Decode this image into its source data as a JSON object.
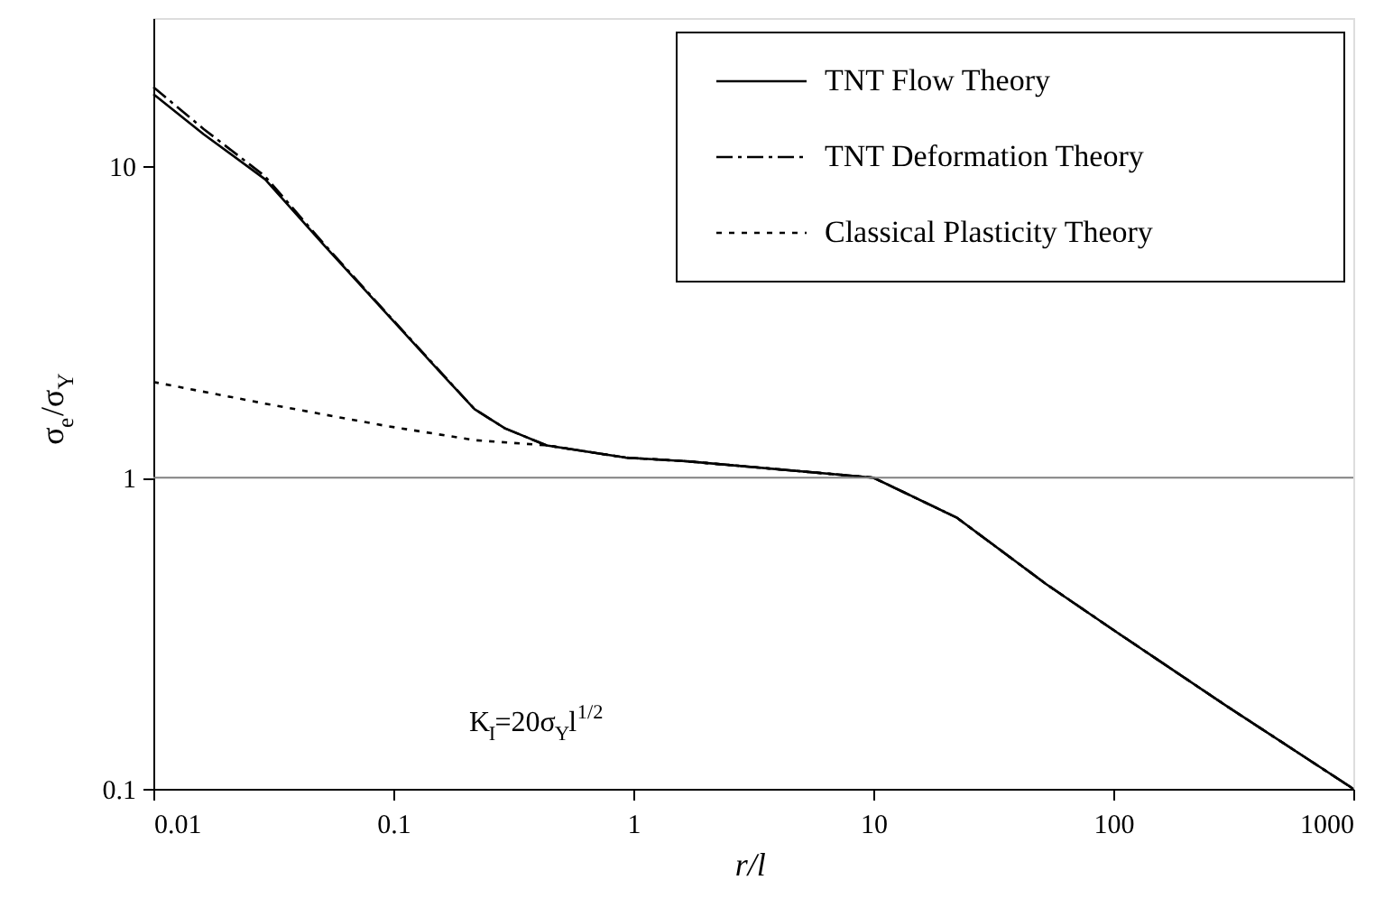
{
  "chart_data": {
    "type": "line",
    "xlabel": "r/l",
    "ylabel": "σ$_{e}$/σ$_{Y}$",
    "annotations": [
      "K$_{I}$=20σ$_{Y}$l$^{1/2}$"
    ],
    "log": "xy",
    "xlim": [
      0.01,
      1000
    ],
    "ylim": [
      0.1,
      30
    ],
    "xticks": [
      0.01,
      0.1,
      1,
      10,
      100,
      1000
    ],
    "yticks": [
      0.1,
      1,
      10
    ],
    "grid": false,
    "legend": "top right",
    "marker": "none",
    "ref_lines": [
      {
        "axis": "y",
        "value": 1,
        "color": "#808080",
        "line_style": "solid"
      }
    ],
    "series": [
      {
        "name": "TNT Flow Theory",
        "color": "#000000",
        "line_style": "solid",
        "x": [
          0.01,
          0.0162,
          0.0292,
          0.0518,
          0.0916,
          0.165,
          0.218,
          0.292,
          0.435,
          0.93,
          1.65,
          10,
          22.2,
          52.7,
          105,
          295,
          1000
        ],
        "values": [
          17.1,
          12.7,
          9.1,
          5.55,
          3.43,
          2.09,
          1.66,
          1.44,
          1.27,
          1.16,
          1.13,
          1.0,
          0.745,
          0.454,
          0.316,
          0.185,
          0.1
        ]
      },
      {
        "name": "TNT Deformation Theory",
        "color": "#000000",
        "line_style": "dashdot",
        "x": [
          0.01,
          0.0162,
          0.0292,
          0.0518,
          0.0916,
          0.165,
          0.218,
          0.292,
          0.435,
          0.93,
          1.65,
          10,
          22.2,
          52.7,
          105,
          295,
          1000
        ],
        "values": [
          18.0,
          13.2,
          9.3,
          5.6,
          3.45,
          2.1,
          1.66,
          1.44,
          1.27,
          1.16,
          1.13,
          1.0,
          0.745,
          0.454,
          0.316,
          0.185,
          0.1
        ]
      },
      {
        "name": "Classical Plasticity Theory",
        "color": "#000000",
        "line_style": "dotted",
        "x": [
          0.01,
          0.0292,
          0.0916,
          0.218,
          0.435,
          0.93,
          1.65,
          10,
          22.2,
          52.7,
          105,
          295,
          1000
        ],
        "values": [
          2.03,
          1.73,
          1.47,
          1.32,
          1.27,
          1.16,
          1.13,
          1.0,
          0.745,
          0.454,
          0.316,
          0.185,
          0.1
        ]
      }
    ]
  }
}
